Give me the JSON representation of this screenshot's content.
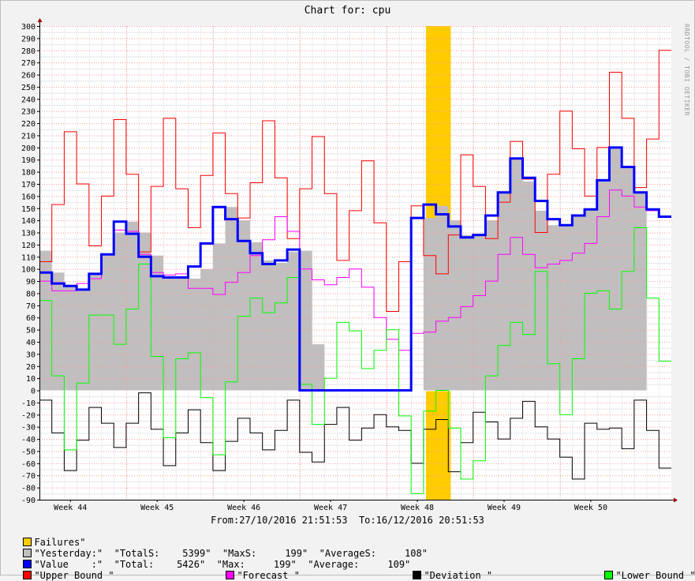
{
  "chart_data": {
    "type": "line",
    "title": "Chart for: cpu",
    "watermark": "RRDTOOL / TOBI OETIKER",
    "x_tick_labels": [
      "Week 44",
      "Week 45",
      "Week 46",
      "Week 47",
      "Week 48",
      "Week 49",
      "Week 50"
    ],
    "x_tick_pos": [
      2.5,
      9.5,
      16.5,
      23.5,
      30.5,
      37.5,
      44.5
    ],
    "ylim": [
      -90,
      300
    ],
    "y_ticks": [
      -90,
      -80,
      -70,
      -60,
      -50,
      -40,
      -30,
      -20,
      -10,
      0,
      10,
      20,
      30,
      40,
      50,
      60,
      70,
      80,
      90,
      100,
      110,
      120,
      130,
      140,
      150,
      160,
      170,
      180,
      190,
      200,
      210,
      220,
      230,
      240,
      250,
      260,
      270,
      280,
      290,
      300
    ],
    "grid": true,
    "legend_position": "bottom",
    "range_text": "From:27/10/2016 21:51:53  To:16/12/2016 20:51:53",
    "failures": [
      [
        31.2,
        33.2
      ]
    ],
    "series": [
      {
        "name": "Yesterday",
        "color": "#c0bebf",
        "style": "area",
        "values": [
          115,
          97,
          87,
          82,
          96,
          112,
          130,
          139,
          130,
          111,
          93,
          92,
          92,
          100,
          121,
          151,
          140,
          122,
          107,
          105,
          114,
          115,
          38,
          0,
          0,
          0,
          0,
          0,
          0,
          0,
          0,
          142,
          152,
          140,
          128,
          128,
          140,
          163,
          191,
          172,
          148,
          136,
          136,
          144,
          149,
          172,
          200,
          184,
          163
        ]
      },
      {
        "name": "Value",
        "color": "#0000ff",
        "style": "line",
        "values": [
          97,
          88,
          86,
          83,
          96,
          112,
          139,
          129,
          110,
          94,
          93,
          93,
          102,
          121,
          151,
          141,
          123,
          113,
          104,
          107,
          116,
          0,
          0,
          0,
          0,
          0,
          0,
          0,
          0,
          0,
          142,
          153,
          145,
          135,
          126,
          128,
          144,
          163,
          191,
          175,
          156,
          141,
          136,
          144,
          149,
          173,
          200,
          184,
          163,
          149,
          143
        ]
      },
      {
        "name": "Upper Bound",
        "color": "#ff0000",
        "style": "line",
        "values": [
          106,
          153,
          213,
          170,
          119,
          160,
          223,
          178,
          114,
          168,
          224,
          166,
          134,
          177,
          212,
          162,
          142,
          171,
          222,
          175,
          125,
          166,
          209,
          162,
          107,
          148,
          189,
          138,
          65,
          106,
          152,
          111,
          96,
          128,
          194,
          168,
          125,
          155,
          205,
          174,
          130,
          178,
          230,
          199,
          160,
          200,
          262,
          224,
          167,
          207,
          280
        ]
      },
      {
        "name": "Forecast",
        "color": "#ff00ff",
        "style": "line",
        "values": [
          90,
          82,
          82,
          88,
          92,
          112,
          132,
          131,
          112,
          97,
          95,
          96,
          84,
          84,
          79,
          89,
          97,
          111,
          124,
          143,
          131,
          100,
          91,
          87,
          93,
          100,
          85,
          60,
          42,
          33,
          47,
          48,
          57,
          60,
          69,
          78,
          90,
          112,
          126,
          112,
          101,
          104,
          107,
          113,
          121,
          143,
          165,
          160,
          151,
          148,
          143
        ]
      },
      {
        "name": "Deviation",
        "color": "#000000",
        "style": "line",
        "values": [
          -8,
          -35,
          -66,
          -41,
          -14,
          -27,
          -47,
          -27,
          -2,
          -32,
          -62,
          -35,
          -16,
          -43,
          -66,
          -42,
          -23,
          -35,
          -49,
          -33,
          -8,
          -51,
          -59,
          -28,
          -14,
          -41,
          -31,
          -20,
          -30,
          -33,
          -60,
          -32,
          -24,
          -67,
          -43,
          -18,
          -26,
          -40,
          -23,
          -9,
          -30,
          -40,
          -55,
          -73,
          -27,
          -32,
          -31,
          -48,
          -8,
          -33,
          -64
        ]
      },
      {
        "name": "Lower Bound",
        "color": "#00ff00",
        "style": "line",
        "values": [
          74,
          12,
          -49,
          6,
          62,
          62,
          38,
          67,
          104,
          28,
          -39,
          26,
          31,
          -6,
          -53,
          7,
          61,
          76,
          64,
          72,
          93,
          5,
          -28,
          10,
          56,
          49,
          18,
          33,
          50,
          -21,
          -85,
          -17,
          0,
          -31,
          -73,
          -58,
          12,
          37,
          56,
          46,
          98,
          22,
          -20,
          26,
          80,
          82,
          67,
          98,
          134,
          76,
          24
        ]
      }
    ],
    "legend": {
      "failures": "Failures\"",
      "yesterday": "\"Yesterday:\"  \"TotalS:    5399\"  \"MaxS:     199\"  \"AverageS:     108\"",
      "value": "\"Value    :\"  \"Total:    5426\"  \"Max:     199\"  \"Average:     109\"",
      "upper": "\"Upper Bound \"",
      "forecast": "\"Forecast \"",
      "deviation": "\"Deviation \"",
      "lower": "\"Lower Bound \""
    }
  },
  "colors": {
    "failures": "#ffcc00",
    "plot_bg": "#ffffff",
    "grid": "#ff9999",
    "axis": "#000000"
  }
}
